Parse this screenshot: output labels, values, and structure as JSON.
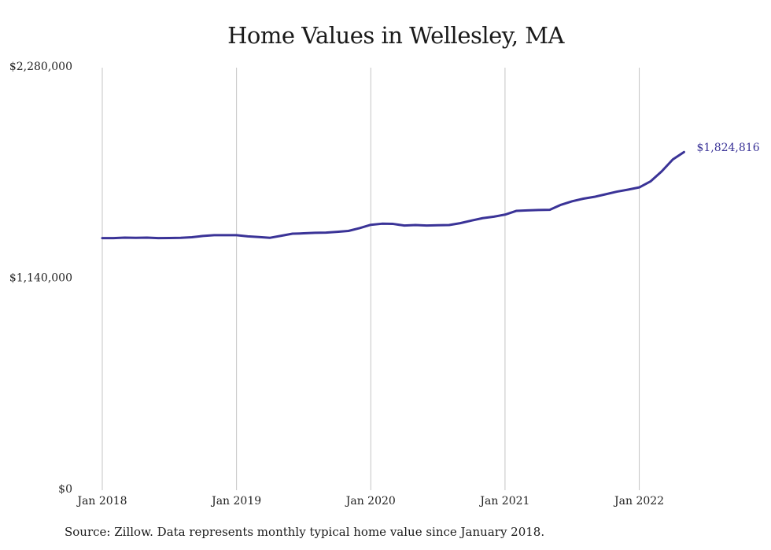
{
  "page_title": "Home Values in Wellesley, MA",
  "source_note": "Source: Zillow. Data represents monthly typical home value since January 2018.",
  "chart_data": {
    "type": "line",
    "title": "Home Values in Wellesley, MA",
    "xlabel": "",
    "ylabel": "",
    "ylim": [
      0,
      2280000
    ],
    "y_ticks": [
      {
        "value": 0,
        "label": "$0"
      },
      {
        "value": 1140000,
        "label": "$1,140,000"
      },
      {
        "value": 2280000,
        "label": "$2,280,000"
      }
    ],
    "x_ticks": [
      {
        "month_index": 0,
        "label": "Jan 2018"
      },
      {
        "month_index": 12,
        "label": "Jan 2019"
      },
      {
        "month_index": 24,
        "label": "Jan 2020"
      },
      {
        "month_index": 36,
        "label": "Jan 2021"
      },
      {
        "month_index": 48,
        "label": "Jan 2022"
      }
    ],
    "grid": "vertical",
    "legend": "none",
    "line_color": "#3a3397",
    "end_label": "$1,824,816",
    "series": [
      {
        "x": [
          "2018-01",
          "2018-02",
          "2018-03",
          "2018-04",
          "2018-05",
          "2018-06",
          "2018-07",
          "2018-08",
          "2018-09",
          "2018-10",
          "2018-11",
          "2018-12",
          "2019-01",
          "2019-02",
          "2019-03",
          "2019-04",
          "2019-05",
          "2019-06",
          "2019-07",
          "2019-08",
          "2019-09",
          "2019-10",
          "2019-11",
          "2019-12",
          "2020-01",
          "2020-02",
          "2020-03",
          "2020-04",
          "2020-05",
          "2020-06",
          "2020-07",
          "2020-08",
          "2020-09",
          "2020-10",
          "2020-11",
          "2020-12",
          "2021-01",
          "2021-02",
          "2021-03",
          "2021-04",
          "2021-05",
          "2021-06",
          "2021-07",
          "2021-08",
          "2021-09",
          "2021-10",
          "2021-11",
          "2021-12",
          "2022-01",
          "2022-02",
          "2022-03",
          "2022-04",
          "2022-05"
        ],
        "values": [
          1360000,
          1360000,
          1363000,
          1362000,
          1363000,
          1360000,
          1361000,
          1362000,
          1365000,
          1372000,
          1376000,
          1376000,
          1376000,
          1370000,
          1366000,
          1362000,
          1373000,
          1384000,
          1386000,
          1389000,
          1390000,
          1394000,
          1399000,
          1414000,
          1432000,
          1438000,
          1437000,
          1428000,
          1431000,
          1428000,
          1430000,
          1431000,
          1441000,
          1455000,
          1468000,
          1476000,
          1487000,
          1507000,
          1510000,
          1512000,
          1513000,
          1540000,
          1559000,
          1573000,
          1583000,
          1597000,
          1611000,
          1622000,
          1634000,
          1666000,
          1720000,
          1785000,
          1824816
        ]
      }
    ]
  }
}
